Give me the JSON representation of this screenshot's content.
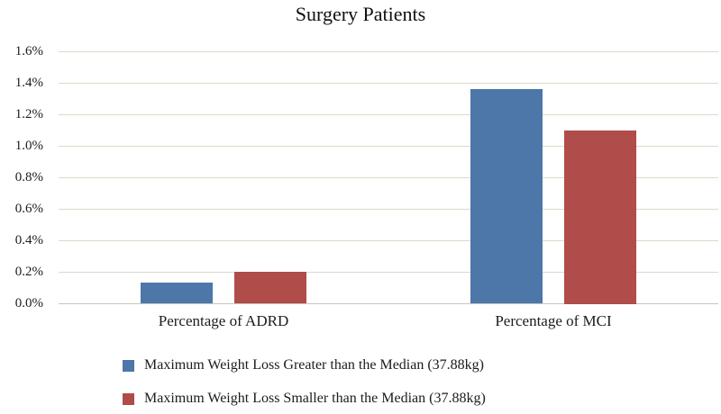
{
  "chart_data": {
    "type": "bar",
    "title": "Surgery Patients",
    "categories": [
      "Percentage of ADRD",
      "Percentage of MCI"
    ],
    "series": [
      {
        "name": "Maximum Weight Loss Greater than the Median (37.88kg)",
        "color": "#4c77a8",
        "values": [
          0.13,
          1.36
        ]
      },
      {
        "name": "Maximum Weight Loss Smaller than the Median (37.88kg)",
        "color": "#b04c49",
        "values": [
          0.2,
          1.1
        ]
      }
    ],
    "ylim": [
      0,
      1.6
    ],
    "yticks": [
      {
        "value": 0.0,
        "label": "0.0%"
      },
      {
        "value": 0.2,
        "label": "0.2%"
      },
      {
        "value": 0.4,
        "label": "0.4%"
      },
      {
        "value": 0.6,
        "label": "0.6%"
      },
      {
        "value": 0.8,
        "label": "0.8%"
      },
      {
        "value": 1.0,
        "label": "1.0%"
      },
      {
        "value": 1.2,
        "label": "1.2%"
      },
      {
        "value": 1.4,
        "label": "1.4%"
      },
      {
        "value": 1.6,
        "label": "1.6%"
      }
    ],
    "grid": true,
    "legend_position": "bottom-left",
    "colors": {
      "gridline": "#dcd8ca",
      "axis_line": "#c9c6ba",
      "background": "#ffffff",
      "text": "#1c1c1c"
    }
  }
}
